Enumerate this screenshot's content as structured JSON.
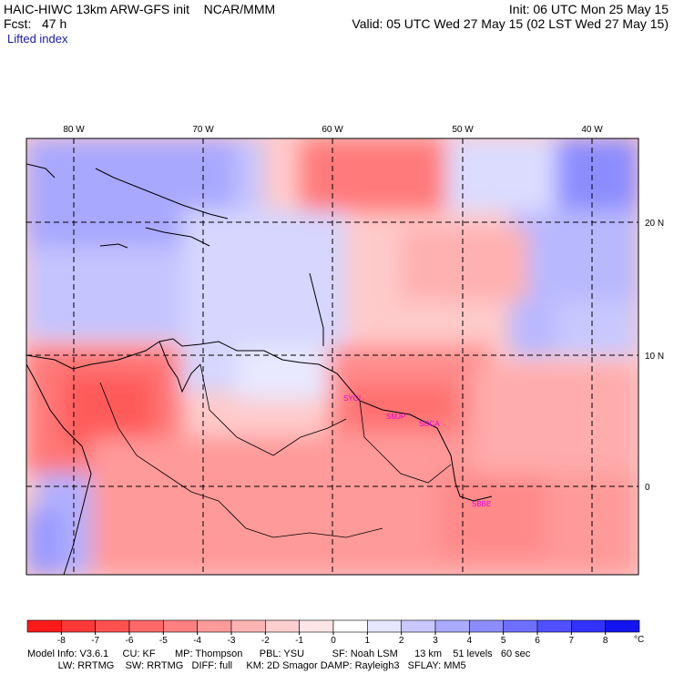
{
  "header": {
    "title": "HAIC-HIWC 13km ARW-GFS init    NCAR/MMM",
    "forecast": "Fcst:   47 h",
    "field": "Lifted index",
    "init": "Init: 06 UTC Mon 25 May 15",
    "valid": "Valid: 05 UTC Wed 27 May 15 (02 LST Wed 27 May 15)"
  },
  "map": {
    "lon_labels": [
      "80 W",
      "70 W",
      "60 W",
      "50 W",
      "40 W"
    ],
    "lat_labels": [
      "20 N",
      "10 N",
      "0"
    ],
    "stations": [
      "SYGI",
      "SMJP",
      "SOCA",
      "SBBE"
    ]
  },
  "colorbar": {
    "ticks": [
      "-8",
      "-7",
      "-6",
      "-5",
      "-4",
      "-3",
      "-2",
      "-1",
      "0",
      "1",
      "2",
      "3",
      "4",
      "5",
      "6",
      "7",
      "8"
    ],
    "unit": "°C",
    "colors": [
      "#ff1a1a",
      "#ff3838",
      "#ff5050",
      "#ff6868",
      "#ff8080",
      "#ff9a9a",
      "#ffb4b4",
      "#ffcece",
      "#ffe6e6",
      "#ffffff",
      "#e6e6ff",
      "#c8c8ff",
      "#aaaaff",
      "#8c8cff",
      "#6e6eff",
      "#5050ff",
      "#3232ff",
      "#1414f0"
    ]
  },
  "footer": {
    "line1": "Model Info: V3.6.1     CU: KF       MP: Thompson      PBL: YSU          SF: Noah LSM      13 km    51 levels   60 sec",
    "line2": "           LW: RRTMG    SW: RRTMG   DIFF: full     KM: 2D Smagor DAMP: Rayleigh3   SFLAY: MM5"
  }
}
